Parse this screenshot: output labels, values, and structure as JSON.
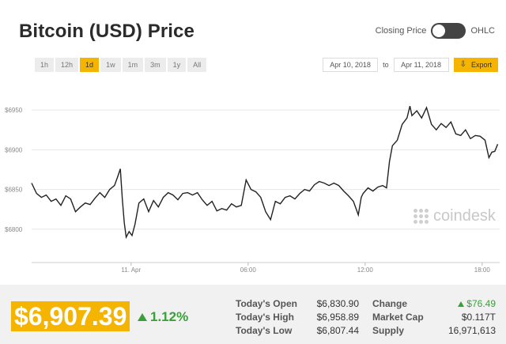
{
  "header": {
    "title": "Bitcoin (USD) Price"
  },
  "toggle": {
    "left_label": "Closing Price",
    "right_label": "OHLC",
    "state": "closing-price"
  },
  "ranges": [
    {
      "label": "1h",
      "active": false
    },
    {
      "label": "12h",
      "active": false
    },
    {
      "label": "1d",
      "active": true
    },
    {
      "label": "1w",
      "active": false
    },
    {
      "label": "1m",
      "active": false
    },
    {
      "label": "3m",
      "active": false
    },
    {
      "label": "1y",
      "active": false
    },
    {
      "label": "All",
      "active": false
    }
  ],
  "dates": {
    "from": "Apr 10, 2018",
    "separator": "to",
    "to": "Apr 11, 2018",
    "export_label": "Export"
  },
  "watermark": {
    "text": "coindesk"
  },
  "chart_data": {
    "type": "line",
    "series": [
      {
        "values": [
          [
            0.0,
            6858
          ],
          [
            0.25,
            6845
          ],
          [
            0.5,
            6840
          ],
          [
            0.75,
            6843
          ],
          [
            1.0,
            6835
          ],
          [
            1.25,
            6838
          ],
          [
            1.5,
            6830
          ],
          [
            1.75,
            6842
          ],
          [
            2.0,
            6838
          ],
          [
            2.25,
            6822
          ],
          [
            2.5,
            6828
          ],
          [
            2.75,
            6833
          ],
          [
            3.0,
            6831
          ],
          [
            3.25,
            6839
          ],
          [
            3.5,
            6846
          ],
          [
            3.75,
            6840
          ],
          [
            4.0,
            6850
          ],
          [
            4.25,
            6855
          ],
          [
            4.4,
            6865
          ],
          [
            4.55,
            6876
          ],
          [
            4.65,
            6838
          ],
          [
            4.75,
            6808
          ],
          [
            4.85,
            6790
          ],
          [
            5.0,
            6797
          ],
          [
            5.15,
            6792
          ],
          [
            5.3,
            6806
          ],
          [
            5.5,
            6833
          ],
          [
            5.75,
            6838
          ],
          [
            6.0,
            6822
          ],
          [
            6.25,
            6836
          ],
          [
            6.5,
            6828
          ],
          [
            6.75,
            6840
          ],
          [
            7.0,
            6846
          ],
          [
            7.25,
            6843
          ],
          [
            7.5,
            6837
          ],
          [
            7.75,
            6845
          ],
          [
            8.0,
            6846
          ],
          [
            8.25,
            6843
          ],
          [
            8.5,
            6846
          ],
          [
            8.75,
            6837
          ],
          [
            9.0,
            6830
          ],
          [
            9.25,
            6835
          ],
          [
            9.5,
            6823
          ],
          [
            9.75,
            6826
          ],
          [
            10.0,
            6824
          ],
          [
            10.25,
            6832
          ],
          [
            10.5,
            6828
          ],
          [
            10.75,
            6830
          ],
          [
            11.0,
            6862
          ],
          [
            11.25,
            6850
          ],
          [
            11.5,
            6847
          ],
          [
            11.75,
            6840
          ],
          [
            12.0,
            6822
          ],
          [
            12.25,
            6812
          ],
          [
            12.5,
            6835
          ],
          [
            12.75,
            6832
          ],
          [
            13.0,
            6840
          ],
          [
            13.25,
            6842
          ],
          [
            13.5,
            6838
          ],
          [
            13.75,
            6845
          ],
          [
            14.0,
            6850
          ],
          [
            14.25,
            6848
          ],
          [
            14.5,
            6856
          ],
          [
            14.75,
            6860
          ],
          [
            15.0,
            6858
          ],
          [
            15.25,
            6855
          ],
          [
            15.5,
            6858
          ],
          [
            15.75,
            6855
          ],
          [
            16.0,
            6848
          ],
          [
            16.25,
            6842
          ],
          [
            16.5,
            6835
          ],
          [
            16.75,
            6818
          ],
          [
            16.9,
            6840
          ],
          [
            17.0,
            6845
          ],
          [
            17.25,
            6852
          ],
          [
            17.5,
            6848
          ],
          [
            17.75,
            6853
          ],
          [
            18.0,
            6855
          ],
          [
            18.2,
            6852
          ],
          [
            18.35,
            6885
          ],
          [
            18.5,
            6905
          ],
          [
            18.75,
            6912
          ],
          [
            19.0,
            6932
          ],
          [
            19.25,
            6940
          ],
          [
            19.4,
            6955
          ],
          [
            19.5,
            6943
          ],
          [
            19.75,
            6949
          ],
          [
            20.0,
            6940
          ],
          [
            20.25,
            6953
          ],
          [
            20.5,
            6932
          ],
          [
            20.75,
            6925
          ],
          [
            21.0,
            6933
          ],
          [
            21.25,
            6928
          ],
          [
            21.5,
            6935
          ],
          [
            21.75,
            6920
          ],
          [
            22.0,
            6918
          ],
          [
            22.25,
            6925
          ],
          [
            22.5,
            6914
          ],
          [
            22.75,
            6918
          ],
          [
            23.0,
            6917
          ],
          [
            23.25,
            6912
          ],
          [
            23.45,
            6890
          ],
          [
            23.6,
            6897
          ],
          [
            23.75,
            6898
          ],
          [
            23.9,
            6907
          ]
        ]
      }
    ],
    "y_ticks": [
      {
        "value": 6800,
        "label": "$6800"
      },
      {
        "value": 6850,
        "label": "$6850"
      },
      {
        "value": 6900,
        "label": "$6900"
      },
      {
        "value": 6950,
        "label": "$6950"
      }
    ],
    "x_ticks": [
      {
        "value": 5.1,
        "label": "11. Apr"
      },
      {
        "value": 11.1,
        "label": "06:00"
      },
      {
        "value": 17.1,
        "label": "12:00"
      },
      {
        "value": 23.1,
        "label": "18:00"
      }
    ],
    "xlim": [
      0,
      24
    ],
    "ylim": [
      6758,
      6977
    ],
    "grid": true
  },
  "footer": {
    "price": "$6,907.39",
    "change_pct": "1.12%",
    "stats_left": [
      {
        "label": "Today's Open",
        "value": "$6,830.90"
      },
      {
        "label": "Today's High",
        "value": "$6,958.89"
      },
      {
        "label": "Today's Low",
        "value": "$6,807.44"
      }
    ],
    "stats_right": [
      {
        "label": "Change",
        "value": "$76.49"
      },
      {
        "label": "Market Cap",
        "value": "$0.117T"
      },
      {
        "label": "Supply",
        "value": "16,971,613"
      }
    ]
  },
  "colors": {
    "accent": "#f5b400",
    "positive": "#3aa13a",
    "line": "#222222"
  }
}
